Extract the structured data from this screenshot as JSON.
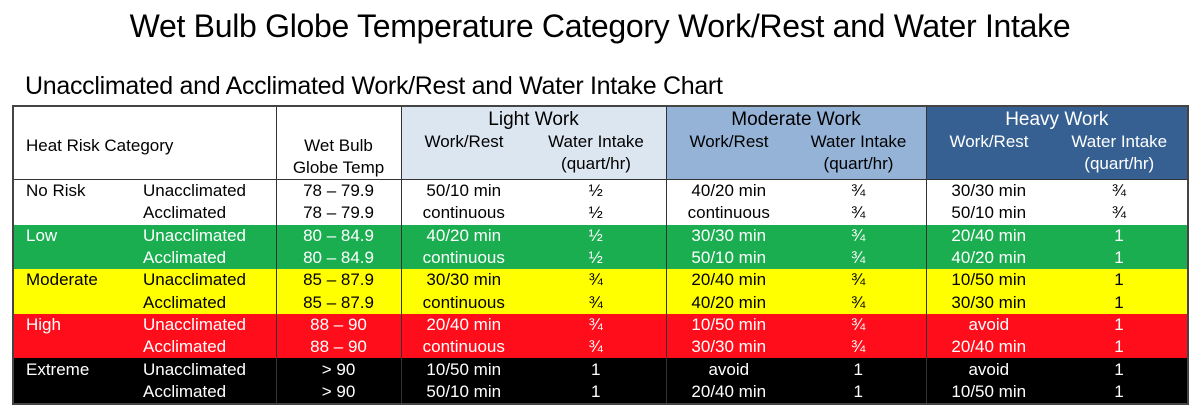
{
  "title": "Wet Bulb Globe Temperature Category Work/Rest and Water Intake",
  "subtitle": "Unacclimated and Acclimated Work/Rest and Water Intake Chart",
  "header": {
    "heat_risk_category": "Heat Risk Category",
    "wbgt_line1": "Wet Bulb",
    "wbgt_line2": "Globe Temp",
    "groups": [
      {
        "label": "Light Work",
        "work_rest": "Work/Rest",
        "water_line1": "Water Intake",
        "water_line2": "(quart/hr)",
        "color": "#dce6f1"
      },
      {
        "label": "Moderate Work",
        "work_rest": "Work/Rest",
        "water_line1": "Water Intake",
        "water_line2": "(quart/hr)",
        "color": "#95b3d7"
      },
      {
        "label": "Heavy Work",
        "work_rest": "Work/Rest",
        "water_line1": "Water Intake",
        "water_line2": "(quart/hr)",
        "color": "#366092"
      }
    ]
  },
  "categories": [
    {
      "name": "No Risk",
      "bg": "#ffffff",
      "fg": "#000000",
      "rows": [
        {
          "status": "Unacclimated",
          "wbgt": "78 – 79.9",
          "cells": [
            "50/10 min",
            "½",
            "40/20 min",
            "¾",
            "30/30 min",
            "¾"
          ]
        },
        {
          "status": "Acclimated",
          "wbgt": "78 – 79.9",
          "cells": [
            "continuous",
            "½",
            "continuous",
            "¾",
            "50/10 min",
            "¾"
          ]
        }
      ]
    },
    {
      "name": "Low",
      "bg": "#1aae50",
      "fg": "#ffffff",
      "rows": [
        {
          "status": "Unacclimated",
          "wbgt": "80 – 84.9",
          "cells": [
            "40/20 min",
            "½",
            "30/30 min",
            "¾",
            "20/40 min",
            "1"
          ]
        },
        {
          "status": "Acclimated",
          "wbgt": "80 – 84.9",
          "cells": [
            "continuous",
            "½",
            "50/10 min",
            "¾",
            "40/20 min",
            "1"
          ]
        }
      ]
    },
    {
      "name": "Moderate",
      "bg": "#ffff00",
      "fg": "#000000",
      "rows": [
        {
          "status": "Unacclimated",
          "wbgt": "85 – 87.9",
          "cells": [
            "30/30 min",
            "¾",
            "20/40 min",
            "¾",
            "10/50 min",
            "1"
          ]
        },
        {
          "status": "Acclimated",
          "wbgt": "85 – 87.9",
          "cells": [
            "continuous",
            "¾",
            "40/20 min",
            "¾",
            "30/30 min",
            "1"
          ]
        }
      ]
    },
    {
      "name": "High",
      "bg": "#ff0d1a",
      "fg": "#ffffff",
      "rows": [
        {
          "status": "Unacclimated",
          "wbgt": "88 – 90",
          "cells": [
            "20/40 min",
            "¾",
            "10/50 min",
            "¾",
            "avoid",
            "1"
          ]
        },
        {
          "status": "Acclimated",
          "wbgt": "88 – 90",
          "cells": [
            "continuous",
            "¾",
            "30/30 min",
            "¾",
            "20/40 min",
            "1"
          ]
        }
      ]
    },
    {
      "name": "Extreme",
      "bg": "#000000",
      "fg": "#ffffff",
      "rows": [
        {
          "status": "Unacclimated",
          "wbgt": "> 90",
          "cells": [
            "10/50 min",
            "1",
            "avoid",
            "1",
            "avoid",
            "1"
          ]
        },
        {
          "status": "Acclimated",
          "wbgt": "> 90",
          "cells": [
            "50/10 min",
            "1",
            "20/40 min",
            "1",
            "10/50 min",
            "1"
          ]
        }
      ]
    }
  ]
}
